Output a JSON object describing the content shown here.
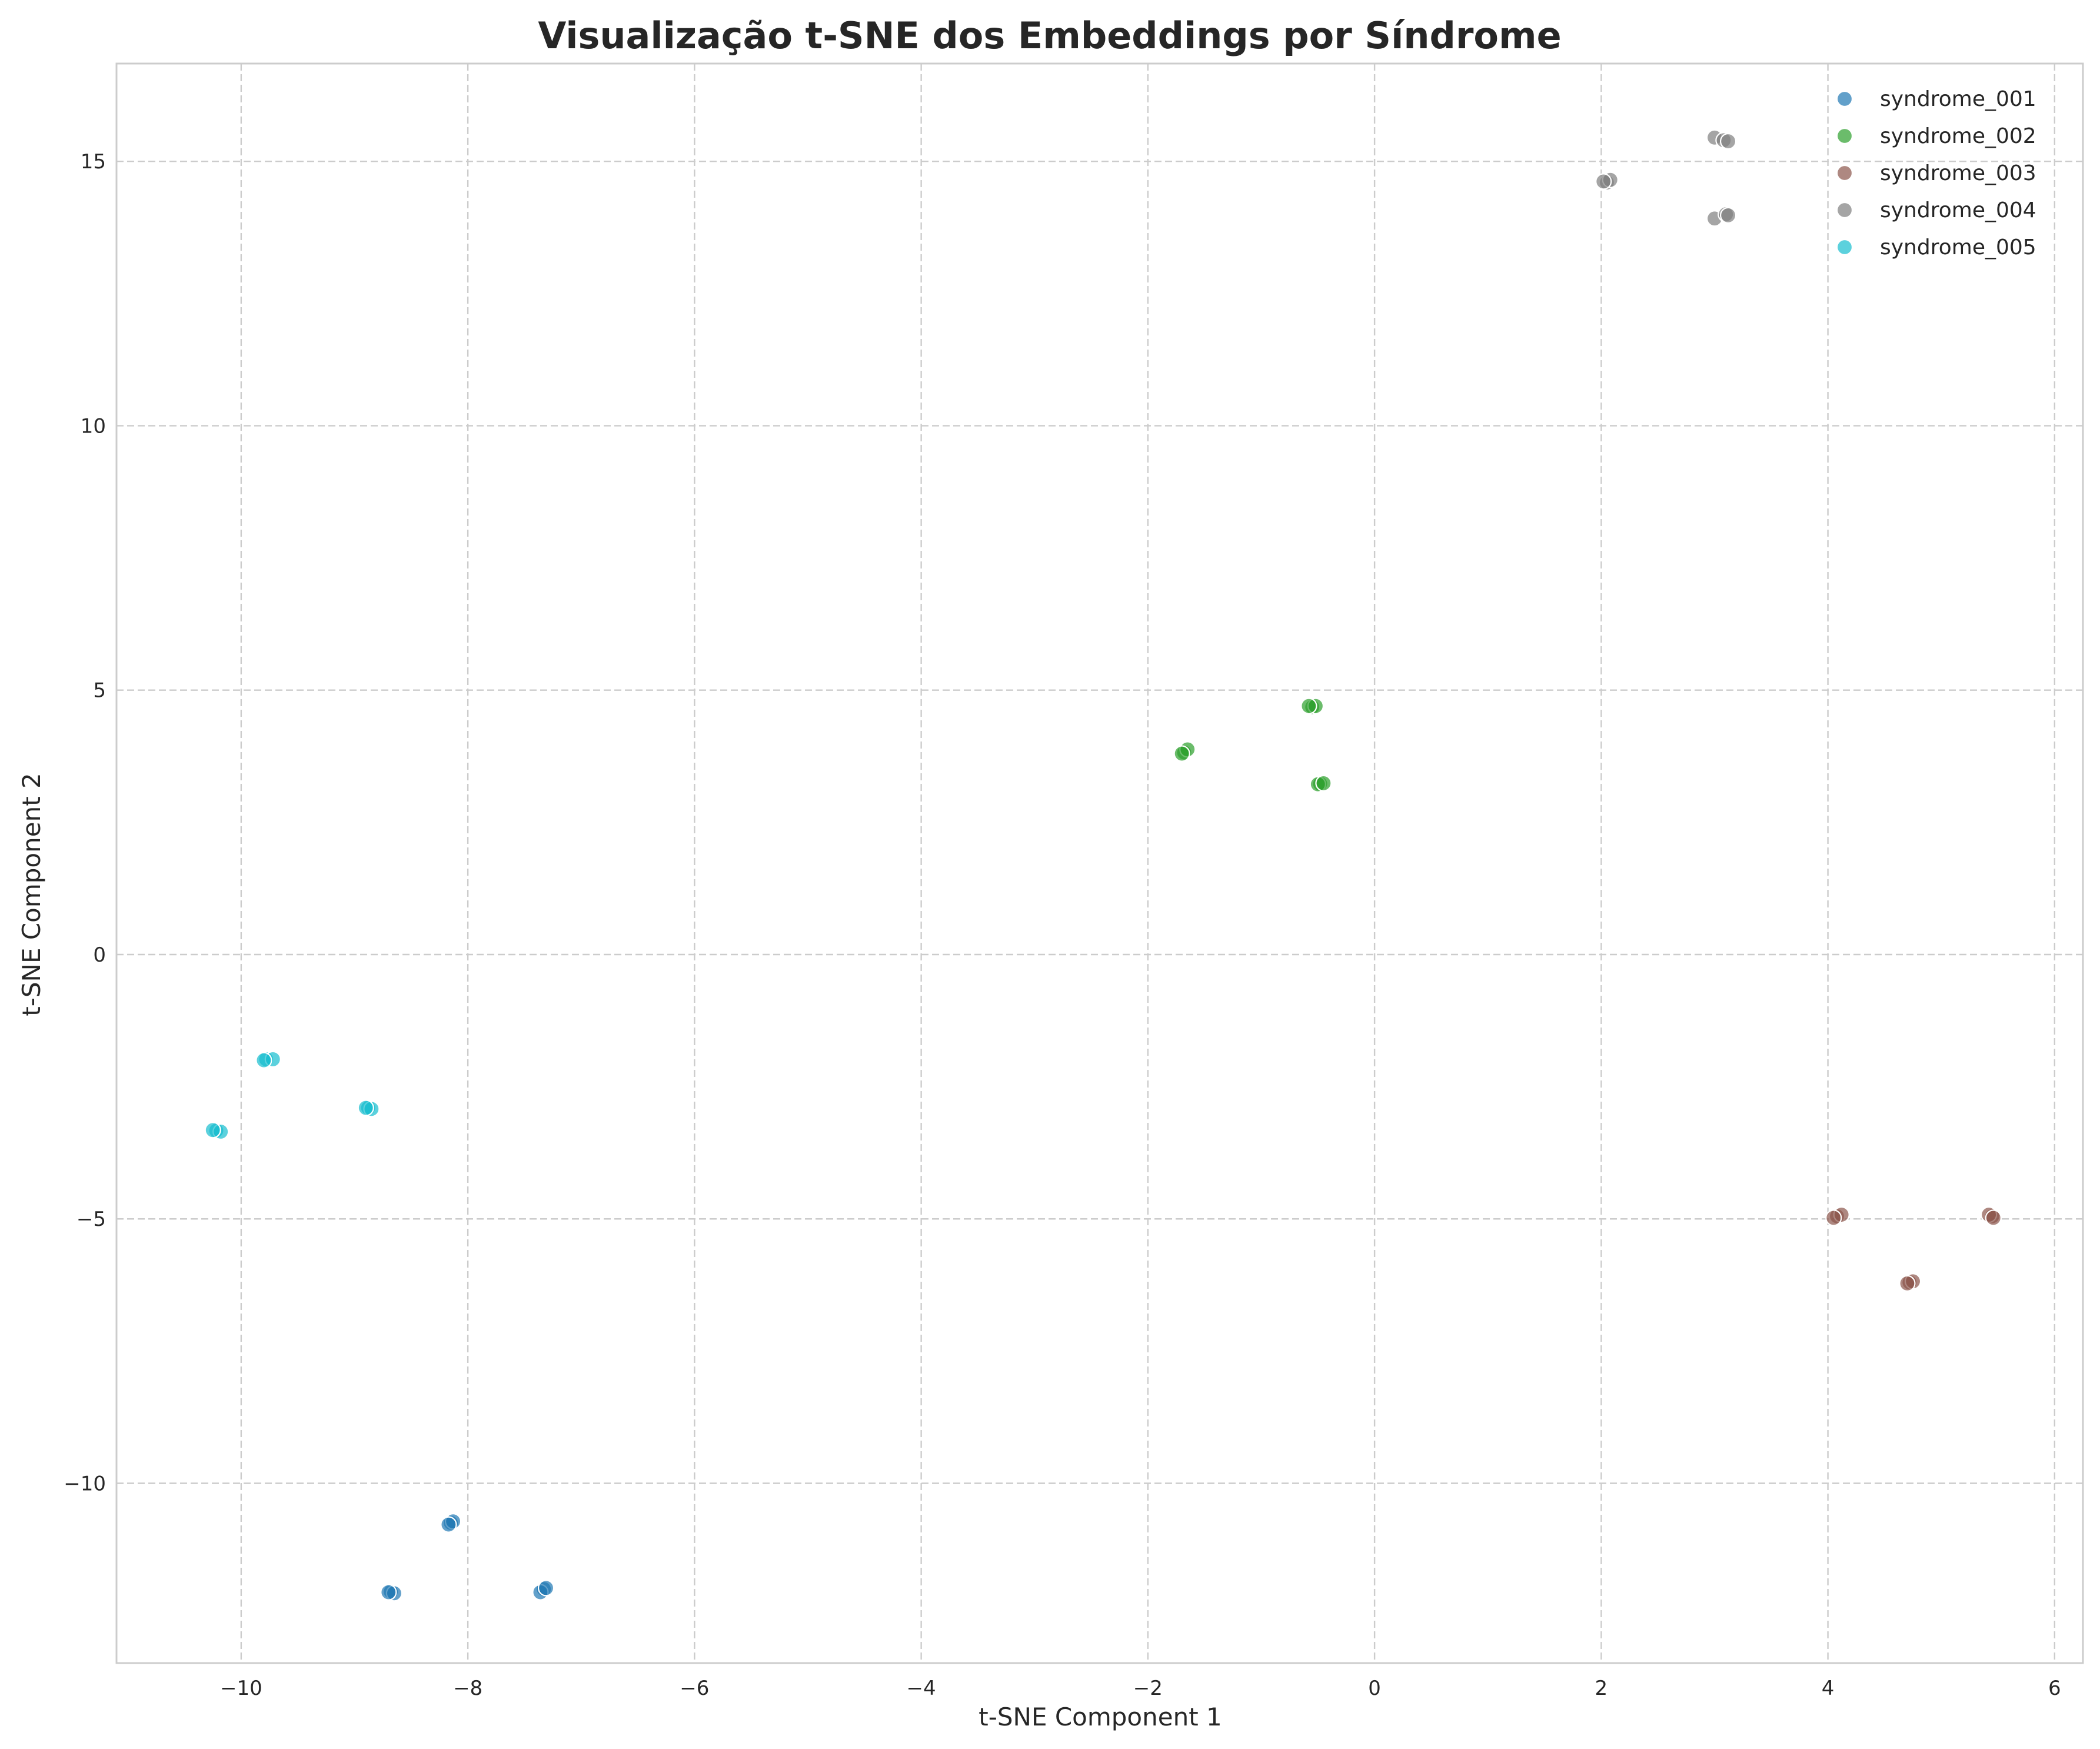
{
  "chart_data": {
    "type": "scatter",
    "title": "Visualização t-SNE dos Embeddings por Síndrome",
    "xlabel": "t-SNE Component 1",
    "ylabel": "t-SNE Component 2",
    "xlim": [
      -11.1,
      6.25
    ],
    "ylim": [
      -13.4,
      16.85
    ],
    "xticks": [
      -10,
      -8,
      -6,
      -4,
      -2,
      0,
      2,
      4,
      6
    ],
    "yticks": [
      -10,
      -5,
      0,
      5,
      10,
      15
    ],
    "xtick_labels": [
      "−10",
      "−8",
      "−6",
      "−4",
      "−2",
      "0",
      "2",
      "4",
      "6"
    ],
    "ytick_labels": [
      "−10",
      "−5",
      "0",
      "5",
      "10",
      "15"
    ],
    "grid": true,
    "legend_position": "top-right",
    "series": [
      {
        "name": "syndrome_001",
        "color": "#1f77b4",
        "points": [
          [
            -8.15,
            -10.75
          ],
          [
            -8.13,
            -10.72
          ],
          [
            -8.17,
            -10.78
          ],
          [
            -8.68,
            -12.05
          ],
          [
            -8.65,
            -12.08
          ],
          [
            -8.7,
            -12.06
          ],
          [
            -7.33,
            -12.0
          ],
          [
            -7.36,
            -12.06
          ],
          [
            -7.31,
            -11.98
          ]
        ]
      },
      {
        "name": "syndrome_002",
        "color": "#2ca02c",
        "points": [
          [
            -1.68,
            3.82
          ],
          [
            -1.65,
            3.88
          ],
          [
            -1.7,
            3.8
          ],
          [
            -0.55,
            4.68
          ],
          [
            -0.52,
            4.7
          ],
          [
            -0.58,
            4.7
          ],
          [
            -0.48,
            3.23
          ],
          [
            -0.5,
            3.22
          ],
          [
            -0.45,
            3.24
          ]
        ]
      },
      {
        "name": "syndrome_003",
        "color": "#8c564b",
        "points": [
          [
            4.08,
            -4.95
          ],
          [
            4.12,
            -4.92
          ],
          [
            4.05,
            -4.98
          ],
          [
            4.72,
            -6.2
          ],
          [
            4.75,
            -6.18
          ],
          [
            4.7,
            -6.22
          ],
          [
            5.45,
            -4.95
          ],
          [
            5.42,
            -4.92
          ],
          [
            5.46,
            -4.98
          ]
        ]
      },
      {
        "name": "syndrome_004",
        "color": "#7f7f7f",
        "points": [
          [
            2.05,
            14.6
          ],
          [
            2.08,
            14.65
          ],
          [
            2.02,
            14.62
          ],
          [
            3.0,
            15.45
          ],
          [
            3.08,
            15.4
          ],
          [
            3.12,
            15.38
          ],
          [
            3.0,
            13.92
          ],
          [
            3.1,
            14.0
          ],
          [
            3.12,
            13.98
          ]
        ]
      },
      {
        "name": "syndrome_005",
        "color": "#17becf",
        "points": [
          [
            -9.78,
            -1.98
          ],
          [
            -9.72,
            -1.98
          ],
          [
            -9.8,
            -2.0
          ],
          [
            -8.88,
            -2.9
          ],
          [
            -8.85,
            -2.92
          ],
          [
            -8.9,
            -2.9
          ],
          [
            -10.22,
            -3.33
          ],
          [
            -10.18,
            -3.35
          ],
          [
            -10.25,
            -3.32
          ]
        ]
      }
    ]
  }
}
